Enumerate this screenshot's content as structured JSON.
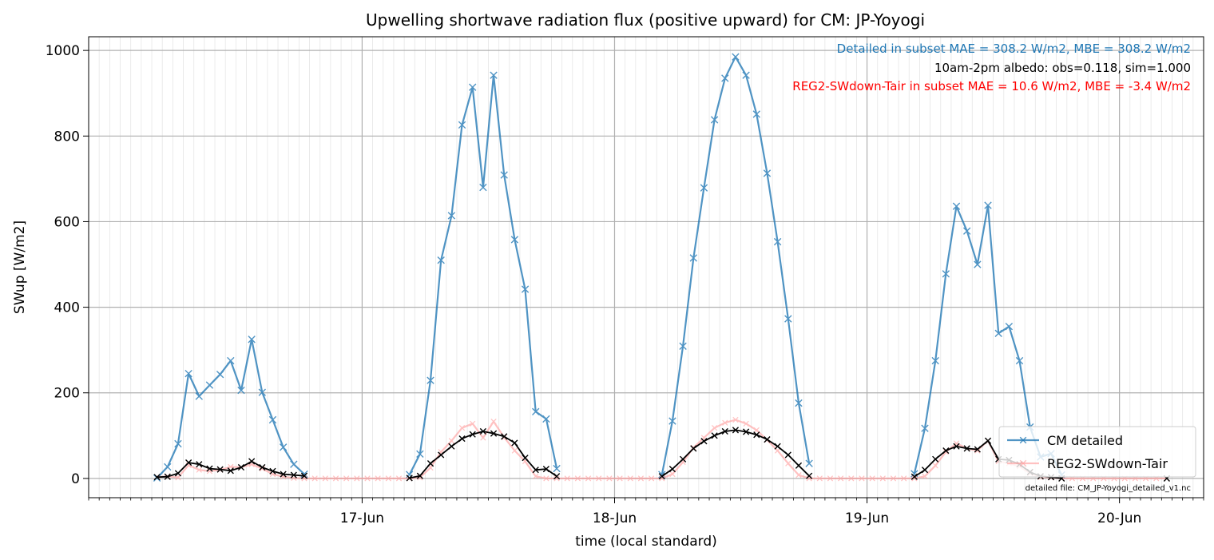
{
  "chart_data": {
    "type": "line",
    "title": "Upwelling shortwave radiation flux (positive upward) for CM: JP-Yoyogi",
    "xlabel": "time (local standard)",
    "ylabel": "SWup [W/m2]",
    "x_unit": "hours since 16-Jun 00:00 (local standard)",
    "xlim": [
      -2.0,
      104.0
    ],
    "ylim": [
      -45,
      1032
    ],
    "xticks": [
      {
        "label": "17-Jun",
        "x": 24
      },
      {
        "label": "18-Jun",
        "x": 48
      },
      {
        "label": "19-Jun",
        "x": 72
      },
      {
        "label": "20-Jun",
        "x": 96
      }
    ],
    "yticks": [
      0,
      200,
      400,
      600,
      800,
      1000
    ],
    "grid": true,
    "legend_position": "lower-right",
    "annotations": [
      {
        "text": "Detailed in subset MAE = 308.2 W/m2, MBE = 308.2 W/m2",
        "color": "#1f77b4"
      },
      {
        "text": "10am-2pm albedo: obs=0.118, sim=1.000",
        "color": "#000000"
      },
      {
        "text": "REG2-SWdown-Tair in subset MAE = 10.6 W/m2, MBE = -3.4 W/m2",
        "color": "#ff0000"
      }
    ],
    "footnote": "detailed file: CM_JP-Yoyogi_detailed_v1.nc",
    "series": [
      {
        "name": "CM detailed",
        "color": "#1f77b4",
        "in_legend": true,
        "points": [
          [
            4.5,
            1
          ],
          [
            5.5,
            27
          ],
          [
            6.5,
            81
          ],
          [
            7.5,
            245
          ],
          [
            8.5,
            192
          ],
          [
            9.5,
            218
          ],
          [
            10.5,
            243
          ],
          [
            11.5,
            275
          ],
          [
            12.5,
            206
          ],
          [
            13.5,
            325
          ],
          [
            14.5,
            201
          ],
          [
            15.5,
            137
          ],
          [
            16.5,
            73
          ],
          [
            17.5,
            33
          ],
          [
            18.5,
            10
          ],
          null,
          [
            28.5,
            9
          ],
          [
            29.5,
            57
          ],
          [
            30.5,
            229
          ],
          [
            31.5,
            510
          ],
          [
            32.5,
            614
          ],
          [
            33.5,
            826
          ],
          [
            34.5,
            914
          ],
          [
            35.5,
            680
          ],
          [
            36.5,
            942
          ],
          [
            37.5,
            709
          ],
          [
            38.5,
            558
          ],
          [
            39.5,
            442
          ],
          [
            40.5,
            156
          ],
          [
            41.5,
            139
          ],
          [
            42.5,
            23
          ],
          null,
          [
            52.5,
            9
          ],
          [
            53.5,
            134
          ],
          [
            54.5,
            309
          ],
          [
            55.5,
            515
          ],
          [
            56.5,
            679
          ],
          [
            57.5,
            838
          ],
          [
            58.5,
            935
          ],
          [
            59.5,
            985
          ],
          [
            60.5,
            942
          ],
          [
            61.5,
            851
          ],
          [
            62.5,
            713
          ],
          [
            63.5,
            553
          ],
          [
            64.5,
            373
          ],
          [
            65.5,
            176
          ],
          [
            66.5,
            35
          ],
          null,
          [
            76.5,
            11
          ],
          [
            77.5,
            117
          ],
          [
            78.5,
            275
          ],
          [
            79.5,
            478
          ],
          [
            80.5,
            636
          ],
          [
            81.5,
            578
          ],
          [
            82.5,
            500
          ],
          [
            83.5,
            638
          ],
          [
            84.5,
            339
          ],
          [
            85.5,
            355
          ],
          [
            86.5,
            275
          ],
          [
            87.5,
            120
          ],
          [
            88.5,
            50
          ],
          [
            89.5,
            58
          ],
          [
            90.5,
            8
          ]
        ]
      },
      {
        "name": "REG2-SWdown-Tair",
        "color": "#ff9999",
        "in_legend": true,
        "points": [
          [
            4.5,
            3
          ],
          [
            5.5,
            5
          ],
          [
            6.5,
            2
          ],
          [
            7.5,
            31
          ],
          [
            8.5,
            20
          ],
          [
            9.5,
            17
          ],
          [
            10.5,
            20
          ],
          [
            11.5,
            27
          ],
          [
            12.5,
            26
          ],
          [
            13.5,
            33
          ],
          [
            14.5,
            23
          ],
          [
            15.5,
            10
          ],
          [
            16.5,
            4
          ],
          [
            17.5,
            1
          ],
          [
            18.5,
            0
          ],
          [
            19.5,
            0
          ],
          [
            20.5,
            0
          ],
          [
            21.5,
            0
          ],
          [
            22.5,
            0
          ],
          [
            23.5,
            0
          ],
          [
            24.5,
            0
          ],
          [
            25.5,
            0
          ],
          [
            26.5,
            0
          ],
          [
            27.5,
            0
          ],
          [
            28.5,
            0
          ],
          [
            29.5,
            2
          ],
          [
            30.5,
            25
          ],
          [
            31.5,
            62
          ],
          [
            32.5,
            88
          ],
          [
            33.5,
            118
          ],
          [
            34.5,
            128
          ],
          [
            35.5,
            95
          ],
          [
            36.5,
            133
          ],
          [
            37.5,
            96
          ],
          [
            38.5,
            65
          ],
          [
            39.5,
            40
          ],
          [
            40.5,
            5
          ],
          [
            41.5,
            0
          ],
          [
            42.5,
            0
          ],
          [
            43.5,
            0
          ],
          [
            44.5,
            0
          ],
          [
            45.5,
            0
          ],
          [
            46.5,
            0
          ],
          [
            47.5,
            0
          ],
          [
            48.5,
            0
          ],
          [
            49.5,
            0
          ],
          [
            50.5,
            0
          ],
          [
            51.5,
            0
          ],
          [
            52.5,
            0
          ],
          [
            53.5,
            10
          ],
          [
            54.5,
            38
          ],
          [
            55.5,
            72
          ],
          [
            56.5,
            95
          ],
          [
            57.5,
            118
          ],
          [
            58.5,
            130
          ],
          [
            59.5,
            137
          ],
          [
            60.5,
            128
          ],
          [
            61.5,
            113
          ],
          [
            62.5,
            90
          ],
          [
            63.5,
            65
          ],
          [
            64.5,
            35
          ],
          [
            65.5,
            8
          ],
          [
            66.5,
            0
          ],
          [
            67.5,
            0
          ],
          [
            68.5,
            0
          ],
          [
            69.5,
            0
          ],
          [
            70.5,
            0
          ],
          [
            71.5,
            0
          ],
          [
            72.5,
            0
          ],
          [
            73.5,
            0
          ],
          [
            74.5,
            0
          ],
          [
            75.5,
            0
          ],
          [
            76.5,
            0
          ],
          [
            77.5,
            5
          ],
          [
            78.5,
            30
          ],
          [
            79.5,
            62
          ],
          [
            80.5,
            82
          ],
          [
            81.5,
            70
          ],
          [
            82.5,
            65
          ],
          [
            83.5,
            88
          ],
          [
            84.5,
            40
          ],
          [
            85.5,
            35
          ],
          [
            86.5,
            28
          ],
          [
            87.5,
            12
          ],
          [
            88.5,
            3
          ],
          [
            89.5,
            2
          ],
          [
            90.5,
            0
          ],
          [
            91.5,
            0
          ],
          [
            92.5,
            0
          ],
          [
            93.5,
            0
          ],
          [
            94.5,
            0
          ],
          [
            95.5,
            0
          ],
          [
            96.5,
            0
          ],
          [
            97.5,
            0
          ],
          [
            98.5,
            0
          ],
          [
            99.5,
            0
          ],
          [
            100.5,
            0
          ]
        ]
      },
      {
        "name": "",
        "color": "#000000",
        "in_legend": false,
        "points": [
          [
            4.5,
            3
          ],
          [
            5.5,
            4
          ],
          [
            6.5,
            12
          ],
          [
            7.5,
            37
          ],
          [
            8.5,
            33
          ],
          [
            9.5,
            23
          ],
          [
            10.5,
            21
          ],
          [
            11.5,
            18
          ],
          [
            12.5,
            26
          ],
          [
            13.5,
            40
          ],
          [
            14.5,
            26
          ],
          [
            15.5,
            17
          ],
          [
            16.5,
            10
          ],
          [
            17.5,
            8
          ],
          [
            18.5,
            6
          ],
          null,
          [
            28.5,
            1
          ],
          [
            29.5,
            6
          ],
          [
            30.5,
            35
          ],
          [
            31.5,
            55
          ],
          [
            32.5,
            75
          ],
          [
            33.5,
            93
          ],
          [
            34.5,
            103
          ],
          [
            35.5,
            110
          ],
          [
            36.5,
            105
          ],
          [
            37.5,
            98
          ],
          [
            38.5,
            83
          ],
          [
            39.5,
            48
          ],
          [
            40.5,
            20
          ],
          [
            41.5,
            22
          ],
          [
            42.5,
            5
          ],
          null,
          [
            52.5,
            5
          ],
          [
            53.5,
            22
          ],
          [
            54.5,
            45
          ],
          [
            55.5,
            70
          ],
          [
            56.5,
            87
          ],
          [
            57.5,
            100
          ],
          [
            58.5,
            110
          ],
          [
            59.5,
            113
          ],
          [
            60.5,
            109
          ],
          [
            61.5,
            102
          ],
          [
            62.5,
            91
          ],
          [
            63.5,
            75
          ],
          [
            64.5,
            55
          ],
          [
            65.5,
            30
          ],
          [
            66.5,
            6
          ],
          null,
          [
            76.5,
            4
          ],
          [
            77.5,
            20
          ],
          [
            78.5,
            45
          ],
          [
            79.5,
            65
          ],
          [
            80.5,
            75
          ],
          [
            81.5,
            70
          ],
          [
            82.5,
            68
          ],
          [
            83.5,
            88
          ],
          [
            84.5,
            45
          ],
          [
            85.5,
            43
          ],
          [
            86.5,
            33
          ],
          [
            87.5,
            15
          ],
          [
            88.5,
            5
          ],
          [
            89.5,
            3
          ],
          [
            90.5,
            0
          ],
          null,
          [
            100.5,
            0
          ]
        ]
      }
    ]
  }
}
